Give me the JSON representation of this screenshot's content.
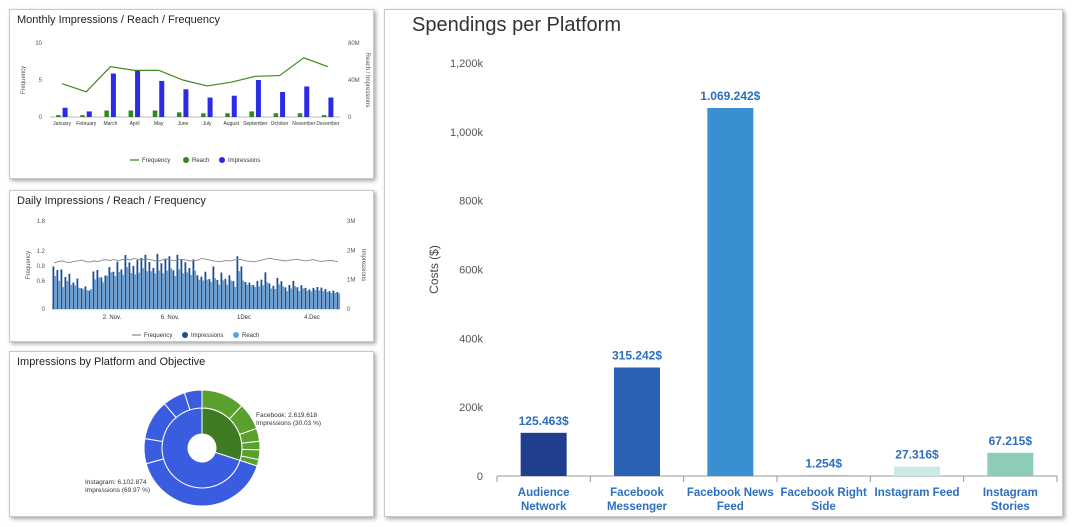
{
  "monthly": {
    "title": "Monthly Impressions / Reach / Frequency",
    "chart_data": {
      "type": "bar",
      "categories": [
        "January",
        "February",
        "March",
        "April",
        "May",
        "June",
        "July",
        "August",
        "September",
        "October",
        "November",
        "December"
      ],
      "series": [
        {
          "name": "Frequency",
          "type": "line",
          "axis": "left",
          "color": "#3d8a1e",
          "values": [
            4.5,
            3.4,
            6.8,
            6.3,
            6.3,
            5.0,
            4.2,
            4.7,
            5.5,
            5.6,
            8.0,
            6.8
          ]
        },
        {
          "name": "Reach",
          "type": "bar",
          "axis": "right",
          "color": "#2f8a1e",
          "values": [
            2,
            2,
            7,
            7,
            7,
            5,
            4,
            4,
            6,
            4,
            4,
            2
          ]
        },
        {
          "name": "Impressions",
          "type": "bar",
          "axis": "right",
          "color": "#2b2be6",
          "values": [
            10,
            6,
            47,
            50,
            39,
            30,
            21,
            23,
            40,
            27,
            33,
            21
          ]
        }
      ],
      "yLeft": {
        "label": "Frequency",
        "ticks": [
          "0",
          "5",
          "10"
        ],
        "min": 0,
        "max": 10
      },
      "yRight": {
        "label": "Reach / Impressions",
        "ticks": [
          "0",
          "40M",
          "80M"
        ],
        "min": 0,
        "max": 80
      },
      "legend": [
        "Frequency",
        "Reach",
        "Impressions"
      ]
    }
  },
  "daily": {
    "title": "Daily Impressions / Reach / Frequency",
    "chart_data": {
      "type": "bar",
      "x_ticks": [
        "2. Nov.",
        "6. Nov.",
        "1Dec",
        "4.Dec"
      ],
      "yLeft": {
        "label": "Frequency",
        "ticks": [
          "0",
          "0.6",
          "0.8",
          "1.2",
          "1.8"
        ],
        "min": 0,
        "max": 1.8
      },
      "yRight": {
        "label": "Impressions",
        "ticks": [
          "0",
          "1M",
          "2M",
          "3M"
        ],
        "min": 0,
        "max": 3
      },
      "frequency": [
        1.15,
        1.18,
        1.2,
        1.17,
        1.16,
        1.19,
        1.2,
        1.22,
        1.18,
        1.17,
        1.2,
        1.18,
        1.22,
        1.23,
        1.21,
        1.24,
        1.2,
        1.23,
        1.25,
        1.22,
        1.26,
        1.24,
        1.22,
        1.25,
        1.23,
        1.21,
        1.19,
        1.22,
        1.25,
        1.22,
        1.2,
        1.23,
        1.24,
        1.22,
        1.2,
        1.21,
        1.22,
        1.26,
        1.24,
        1.22,
        1.2,
        1.18,
        1.19,
        1.21,
        1.2,
        1.22,
        1.24,
        1.23,
        1.2,
        1.19,
        1.18,
        1.2,
        1.22,
        1.25,
        1.27,
        1.24,
        1.23,
        1.21,
        1.2,
        1.22,
        1.23,
        1.24,
        1.21,
        1.2,
        1.22,
        1.23,
        1.2,
        1.19,
        1.2,
        1.21,
        1.2,
        1.18
      ],
      "impressions": [
        1.45,
        1.33,
        1.35,
        1.09,
        1.2,
        0.9,
        1.04,
        0.71,
        0.77,
        0.63,
        1.28,
        1.33,
        1.08,
        1.14,
        1.43,
        1.27,
        1.61,
        1.35,
        1.84,
        1.59,
        1.47,
        1.67,
        1.74,
        1.85,
        1.6,
        1.4,
        1.88,
        1.56,
        1.69,
        1.8,
        1.32,
        1.85,
        1.69,
        1.59,
        1.4,
        1.69,
        1.15,
        1.1,
        1.27,
        1.02,
        1.45,
        0.99,
        1.24,
        1.03,
        1.15,
        0.95,
        1.8,
        1.45,
        0.92,
        0.9,
        0.82,
        0.96,
        1.0,
        1.25,
        0.87,
        0.79,
        1.06,
        0.95,
        0.74,
        0.82,
        0.96,
        0.74,
        0.81,
        0.72,
        0.67,
        0.72,
        0.75,
        0.73,
        0.68,
        0.61,
        0.63,
        0.58
      ],
      "reach": [
        1.12,
        0.96,
        0.75,
        0.95,
        0.82,
        0.8,
        0.72,
        0.67,
        0.64,
        0.68,
        1.01,
        1.07,
        0.91,
        1.14,
        1.25,
        1.12,
        1.26,
        1.17,
        1.43,
        1.23,
        1.18,
        1.24,
        1.39,
        1.29,
        1.29,
        1.22,
        1.31,
        1.22,
        1.31,
        1.39,
        1.12,
        1.35,
        1.22,
        1.25,
        1.16,
        1.31,
        1.0,
        0.97,
        1.0,
        0.93,
        1.05,
        0.83,
        0.98,
        0.83,
        0.97,
        0.75,
        1.29,
        0.97,
        0.83,
        0.81,
        0.75,
        0.77,
        0.81,
        0.91,
        0.7,
        0.68,
        0.84,
        0.77,
        0.61,
        0.7,
        0.78,
        0.61,
        0.7,
        0.63,
        0.6,
        0.65,
        0.63,
        0.61,
        0.58,
        0.55,
        0.54,
        0.53
      ],
      "legend": [
        {
          "name": "Frequency",
          "color": "#888888"
        },
        {
          "name": "Impressions",
          "color": "#1f4e8c"
        },
        {
          "name": "Reach",
          "color": "#5ba4e6"
        }
      ]
    }
  },
  "sunburst": {
    "title": "Impressions by Platform and Objective",
    "chart_data": {
      "type": "pie",
      "inner": [
        {
          "name": "Facebook",
          "value": 2619618,
          "percent": 30.03,
          "color": "#3f7b22"
        },
        {
          "name": "Instagram",
          "value": 6102874,
          "percent": 69.97,
          "color": "#3a5ce0"
        }
      ],
      "outer_facebook_share": [
        40,
        25,
        12,
        8,
        9,
        6
      ],
      "outer_instagram_share": [
        58,
        10,
        16,
        9,
        7
      ],
      "labels": {
        "facebook_line1": "Facebook: 2.619.618",
        "facebook_line2": "Impressions (30.03 %)",
        "instagram_line1": "Instagram: 6.102.874",
        "instagram_line2": "Impressions (69.97 %)"
      }
    }
  },
  "spend": {
    "title": "Spendings per Platform",
    "chart_data": {
      "type": "bar",
      "ylabel": "Costs ($)",
      "ylim": [
        0,
        1200000
      ],
      "y_ticks": [
        "0",
        "200k",
        "400k",
        "600k",
        "800k",
        "1,000k",
        "1,200k"
      ],
      "categories": [
        {
          "line1": "Audience",
          "line2": "Network"
        },
        {
          "line1": "Facebook",
          "line2": "Messenger"
        },
        {
          "line1": "Facebook News",
          "line2": "Feed"
        },
        {
          "line1": "Facebook Right",
          "line2": "Side"
        },
        {
          "line1": "Instagram Feed",
          "line2": ""
        },
        {
          "line1": "Instagram",
          "line2": "Stories"
        }
      ],
      "values": [
        125463,
        315242,
        1069242,
        1254,
        27316,
        67215
      ],
      "data_labels": [
        "125.463$",
        "315.242$",
        "1.069.242$",
        "1.254$",
        "27.316$",
        "67.215$"
      ],
      "colors": [
        "#1f3e8e",
        "#2b60b3",
        "#3a8fd0",
        "#2d7fc4",
        "#c9ede6",
        "#8dcdb8"
      ],
      "label_color": "#2c6fbf"
    }
  }
}
